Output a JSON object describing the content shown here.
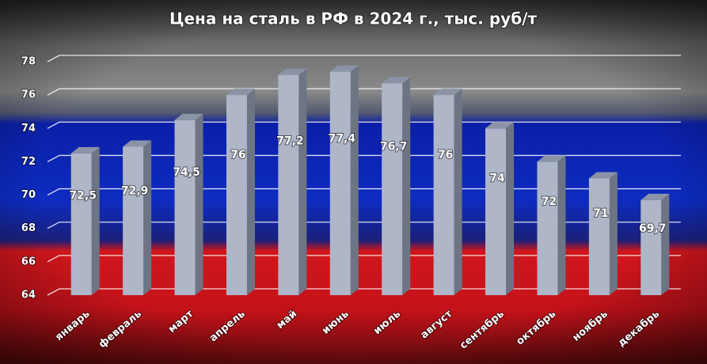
{
  "chart_data": {
    "type": "bar3d",
    "title": "Цена на сталь в РФ в 2024 г., тыс. руб/т",
    "categories": [
      "январь",
      "февраль",
      "март",
      "апрель",
      "май",
      "июнь",
      "июль",
      "август",
      "сентябрь",
      "октябрь",
      "ноябрь",
      "декабрь"
    ],
    "values": [
      72.5,
      72.9,
      74.5,
      76,
      77.2,
      77.4,
      76.7,
      76,
      74,
      72,
      71,
      69.7
    ],
    "value_labels": [
      "72,5",
      "72,9",
      "74,5",
      "76",
      "77,2",
      "77,4",
      "76,7",
      "76",
      "74",
      "72",
      "71",
      "69,7"
    ],
    "color": "#aeb6c8",
    "ylim": [
      64,
      78
    ],
    "yticks": [
      64,
      66,
      68,
      70,
      72,
      74,
      76,
      78
    ],
    "grid": true
  }
}
